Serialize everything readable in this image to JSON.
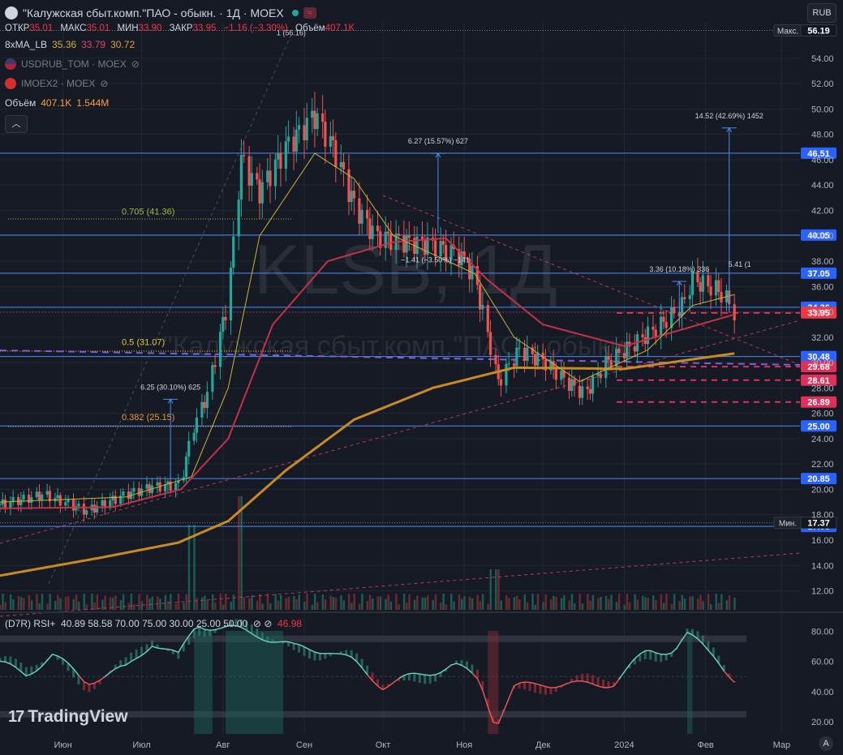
{
  "header": {
    "title": "\"Калужская сбыт.комп.\"ПАО - обыкн. · 1Д · MOEX",
    "currency_button": "RUB"
  },
  "ohlc": {
    "open_label": "ОТКР",
    "open": "35.01",
    "high_label": "МАКС",
    "high": "35.01",
    "low_label": "МИН",
    "low": "33.90",
    "close_label": "ЗАКР",
    "close": "33.95",
    "change": "−1.16 (−3.30%)",
    "volume_label": "Объём",
    "volume": "407.1K"
  },
  "indicators": {
    "ma_name": "8xMA_LB",
    "ma_values": [
      "35.36",
      "33.79",
      "30.72"
    ],
    "compare1": "USDRUB_TOM · MOEX",
    "compare2": "IMOEX2 · MOEX",
    "volume_name": "Объём",
    "volume_values": [
      "407.1K",
      "1.544M"
    ]
  },
  "watermark": {
    "ticker": "KLSB, 1Д",
    "name": "\"Калужская сбыт.комп.\"ПАО - обыкн."
  },
  "colors": {
    "bg": "#161a25",
    "up": "#26a69a",
    "down": "#ef5350",
    "grid": "#232733",
    "ma_fast": "#c9b43a",
    "ma_mid": "#c2334a",
    "ma_slow": "#c88a25",
    "hline": "#2962ff",
    "accent_red": "#f23645"
  },
  "rsi": {
    "label": "(D7R) RSI+",
    "params": "40.89  58.58  70.00  75.00  30.00  25.00  50.00",
    "last": "46.98"
  },
  "brand": "TradingView",
  "chart_data": {
    "type": "candlestick",
    "price_axis": {
      "min": 10.5,
      "max": 56.8,
      "ticks": [
        "54.00",
        "52.00",
        "50.00",
        "48.00",
        "46.00",
        "44.00",
        "42.00",
        "40.00",
        "38.00",
        "36.00",
        "34.00",
        "32.00",
        "30.00",
        "28.00",
        "26.00",
        "24.00",
        "22.00",
        "20.00",
        "18.00",
        "16.00",
        "14.00",
        "12.00"
      ]
    },
    "rsi_axis": {
      "min": 12,
      "max": 91,
      "ticks": [
        "80.00",
        "60.00",
        "40.00",
        "20.00"
      ],
      "bands": [
        75,
        70,
        50,
        30,
        25
      ]
    },
    "x_labels": [
      {
        "label": "Июн",
        "date": "2023-06-01"
      },
      {
        "label": "Июл",
        "date": "2023-07-01"
      },
      {
        "label": "Авг",
        "date": "2023-08-01"
      },
      {
        "label": "Сен",
        "date": "2023-09-01"
      },
      {
        "label": "Окт",
        "date": "2023-10-01"
      },
      {
        "label": "Ноя",
        "date": "2023-11-01"
      },
      {
        "label": "Дек",
        "date": "2023-12-01"
      },
      {
        "label": "2024",
        "date": "2024-01-01"
      },
      {
        "label": "Фев",
        "date": "2024-02-01"
      },
      {
        "label": "Мар",
        "date": "2024-03-01"
      }
    ],
    "price_path": [
      [
        "2023-05-08",
        18.8
      ],
      [
        "2023-05-25",
        19.6
      ],
      [
        "2023-06-10",
        18.3
      ],
      [
        "2023-06-25",
        19.6
      ],
      [
        "2023-07-05",
        20.2
      ],
      [
        "2023-07-16",
        20.4
      ],
      [
        "2023-07-20",
        24.5
      ],
      [
        "2023-07-26",
        27.5
      ],
      [
        "2023-08-03",
        35.0
      ],
      [
        "2023-08-08",
        46.0
      ],
      [
        "2023-08-15",
        43.5
      ],
      [
        "2023-08-25",
        47.0
      ],
      [
        "2023-09-05",
        49.5
      ],
      [
        "2023-09-12",
        47.0
      ],
      [
        "2023-09-20",
        42.5
      ],
      [
        "2023-09-28",
        40.0
      ],
      [
        "2023-10-10",
        39.5
      ],
      [
        "2023-10-20",
        39.3
      ],
      [
        "2023-10-30",
        38.5
      ],
      [
        "2023-11-05",
        36.8
      ],
      [
        "2023-11-14",
        28.5
      ],
      [
        "2023-11-22",
        31.0
      ],
      [
        "2023-12-02",
        30.0
      ],
      [
        "2023-12-10",
        28.5
      ],
      [
        "2023-12-17",
        27.5
      ],
      [
        "2023-12-25",
        30.0
      ],
      [
        "2024-01-05",
        31.5
      ],
      [
        "2024-01-15",
        33.0
      ],
      [
        "2024-01-23",
        34.5
      ],
      [
        "2024-01-27",
        36.5
      ],
      [
        "2024-02-05",
        35.8
      ],
      [
        "2024-02-09",
        35.0
      ],
      [
        "2024-02-12",
        33.95
      ]
    ],
    "ma_fast_path": [
      [
        "2023-05-08",
        19.0
      ],
      [
        "2023-06-25",
        19.4
      ],
      [
        "2023-07-20",
        21.0
      ],
      [
        "2023-08-03",
        28.0
      ],
      [
        "2023-08-15",
        40.0
      ],
      [
        "2023-09-05",
        46.5
      ],
      [
        "2023-09-20",
        44.5
      ],
      [
        "2023-10-05",
        40.0
      ],
      [
        "2023-11-05",
        37.0
      ],
      [
        "2023-11-20",
        32.0
      ],
      [
        "2023-12-15",
        28.5
      ],
      [
        "2024-01-10",
        31.0
      ],
      [
        "2024-01-27",
        34.5
      ],
      [
        "2024-02-12",
        35.36
      ]
    ],
    "ma_mid_path": [
      [
        "2023-05-08",
        18.5
      ],
      [
        "2023-06-20",
        18.6
      ],
      [
        "2023-07-16",
        20.0
      ],
      [
        "2023-08-03",
        24.0
      ],
      [
        "2023-08-20",
        33.0
      ],
      [
        "2023-09-10",
        38.0
      ],
      [
        "2023-10-05",
        39.5
      ],
      [
        "2023-10-25",
        39.8
      ],
      [
        "2023-11-10",
        36.5
      ],
      [
        "2023-12-01",
        33.0
      ],
      [
        "2024-01-01",
        31.3
      ],
      [
        "2024-02-12",
        33.79
      ]
    ],
    "ma_slow_path": [
      [
        "2023-05-08",
        13.2
      ],
      [
        "2023-06-15",
        14.6
      ],
      [
        "2023-07-15",
        15.8
      ],
      [
        "2023-08-03",
        17.5
      ],
      [
        "2023-08-25",
        21.5
      ],
      [
        "2023-09-20",
        25.5
      ],
      [
        "2023-10-20",
        28.0
      ],
      [
        "2023-11-20",
        29.6
      ],
      [
        "2024-01-01",
        29.5
      ],
      [
        "2024-02-12",
        30.72
      ]
    ],
    "rsi_path": [
      [
        "2023-05-08",
        58
      ],
      [
        "2023-05-18",
        52
      ],
      [
        "2023-05-28",
        64
      ],
      [
        "2023-06-10",
        47
      ],
      [
        "2023-06-25",
        55
      ],
      [
        "2023-07-05",
        73
      ],
      [
        "2023-07-15",
        63
      ],
      [
        "2023-07-22",
        85
      ],
      [
        "2023-08-05",
        81
      ],
      [
        "2023-08-15",
        78
      ],
      [
        "2023-08-28",
        69
      ],
      [
        "2023-09-10",
        68
      ],
      [
        "2023-09-20",
        59
      ],
      [
        "2023-10-01",
        44
      ],
      [
        "2023-10-15",
        51
      ],
      [
        "2023-10-28",
        58
      ],
      [
        "2023-11-07",
        47
      ],
      [
        "2023-11-13",
        18
      ],
      [
        "2023-11-20",
        42
      ],
      [
        "2023-12-01",
        46
      ],
      [
        "2023-12-15",
        44
      ],
      [
        "2023-12-28",
        46
      ],
      [
        "2024-01-10",
        67
      ],
      [
        "2024-01-20",
        68
      ],
      [
        "2024-01-25",
        77
      ],
      [
        "2024-02-05",
        64
      ],
      [
        "2024-02-12",
        46.98
      ]
    ],
    "horizontal_levels": [
      {
        "value": 46.51,
        "label": "46.51",
        "kind": "blue"
      },
      {
        "value": 40.05,
        "label": "40.05",
        "kind": "blue"
      },
      {
        "value": 37.05,
        "label": "37.05",
        "kind": "blue"
      },
      {
        "value": 34.36,
        "label": "34.36",
        "kind": "blue"
      },
      {
        "value": 30.48,
        "label": "30.48",
        "kind": "blue"
      },
      {
        "value": 25.0,
        "label": "25.00",
        "kind": "blue"
      },
      {
        "value": 20.85,
        "label": "20.85",
        "kind": "blue"
      },
      {
        "value": 17.08,
        "label": "17.08",
        "kind": "blue"
      },
      {
        "value": 33.91,
        "label": "33.91",
        "kind": "red"
      },
      {
        "value": 29.68,
        "label": "29.68",
        "kind": "red"
      },
      {
        "value": 28.61,
        "label": "28.61",
        "kind": "red"
      },
      {
        "value": 26.89,
        "label": "26.89",
        "kind": "red"
      }
    ],
    "last_price": {
      "value": 33.95,
      "label": "33.95"
    },
    "extremes": [
      {
        "tag": "Макс.",
        "value": 56.19,
        "label": "56.19"
      },
      {
        "tag": "Мин.",
        "value": 17.37,
        "label": "17.37"
      }
    ],
    "fib_labels": [
      {
        "text": "0.705 (41.36)",
        "value": 41.36
      },
      {
        "text": "0.5 (31.07)",
        "value": 31.07
      },
      {
        "text": "0.382 (25.15)",
        "value": 25.15
      }
    ],
    "measure_labels": [
      {
        "text": "6.25 (30.10%) 625",
        "date": "2023-07-12",
        "from": 20.8,
        "to": 27.1,
        "kind": "up"
      },
      {
        "text": "6.27 (15.57%) 627",
        "date": "2023-10-22",
        "from": 40.2,
        "to": 46.5,
        "kind": "up"
      },
      {
        "text": "−1.41 (−3.50%) −141",
        "date": "2023-10-21",
        "value": 37.9,
        "kind": "plain"
      },
      {
        "text": "3.36 (10.18%) 336",
        "date": "2024-01-22",
        "from": 33.1,
        "to": 36.4,
        "kind": "up"
      },
      {
        "text": "14.52 (42.69%) 1452",
        "date": "2024-02-10",
        "from": 34.0,
        "to": 48.5,
        "kind": "up"
      },
      {
        "text": "5.41 (1",
        "date": "2024-02-14",
        "value": 37.55,
        "kind": "plain"
      },
      {
        "text": "1 (56.16)",
        "date": "2023-08-27",
        "value": 55.8,
        "kind": "plain"
      }
    ]
  }
}
